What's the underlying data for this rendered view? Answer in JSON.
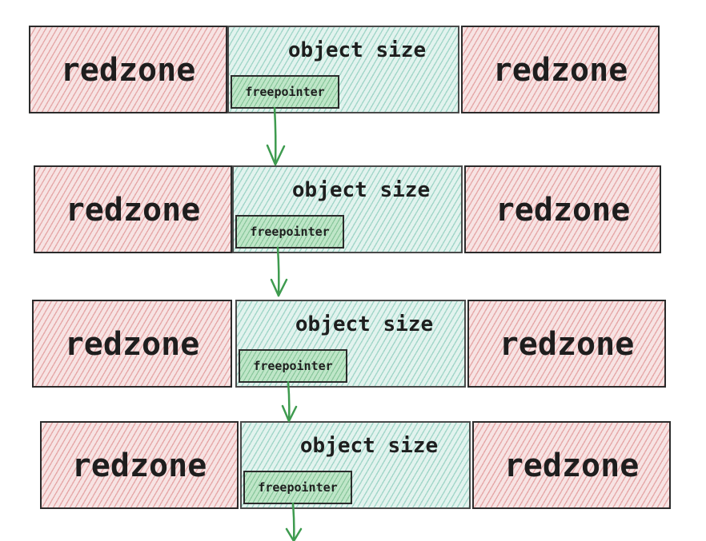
{
  "rows": [
    {
      "left_label": "redzone",
      "object_label": "object size",
      "pointer_label": "freepointer",
      "right_label": "redzone"
    },
    {
      "left_label": "redzone",
      "object_label": "object size",
      "pointer_label": "freepointer",
      "right_label": "redzone"
    },
    {
      "left_label": "redzone",
      "object_label": "object size",
      "pointer_label": "freepointer",
      "right_label": "redzone"
    },
    {
      "left_label": "redzone",
      "object_label": "object size",
      "pointer_label": "freepointer",
      "right_label": "redzone"
    }
  ],
  "colors": {
    "redzone_fill": "#f7e3e3",
    "redzone_hatch": "#d67878",
    "object_fill": "#e2f3ee",
    "object_hatch": "#6ebeaa",
    "freepointer_fill": "#bfe6c8",
    "arrow": "#3e9b4f",
    "outline": "#2b2b2b"
  }
}
